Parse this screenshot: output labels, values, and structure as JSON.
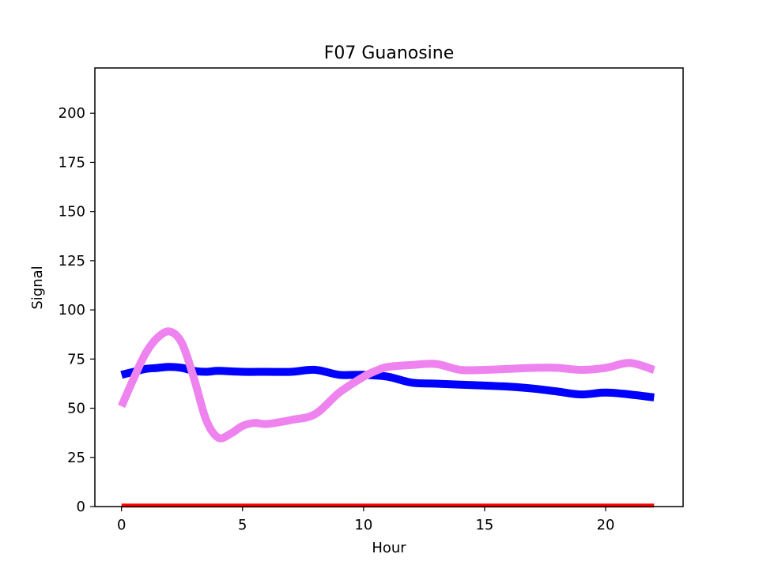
{
  "chart_data": {
    "type": "line",
    "title": "F07 Guanosine",
    "xlabel": "Hour",
    "ylabel": "Signal",
    "xlim": [
      -1.1,
      23.2
    ],
    "ylim": [
      0,
      223
    ],
    "xticks": [
      0,
      5,
      10,
      15,
      20
    ],
    "yticks": [
      0,
      25,
      50,
      75,
      100,
      125,
      150,
      175,
      200
    ],
    "grid": false,
    "legend": "none",
    "series": [
      {
        "color": "#0000ff",
        "points": [
          [
            0,
            67
          ],
          [
            0.5,
            68.5
          ],
          [
            1,
            70
          ],
          [
            1.5,
            70.5
          ],
          [
            2,
            71
          ],
          [
            2.5,
            70.5
          ],
          [
            3,
            69
          ],
          [
            3.5,
            68.5
          ],
          [
            4,
            69
          ],
          [
            5,
            68.5
          ],
          [
            6,
            68.5
          ],
          [
            7,
            68.5
          ],
          [
            8,
            69.5
          ],
          [
            9,
            67
          ],
          [
            10,
            67
          ],
          [
            11,
            66
          ],
          [
            12,
            63
          ],
          [
            13,
            62.5
          ],
          [
            14,
            62
          ],
          [
            15,
            61.5
          ],
          [
            16,
            61
          ],
          [
            17,
            60
          ],
          [
            18,
            58.5
          ],
          [
            19,
            57
          ],
          [
            20,
            58
          ],
          [
            21,
            57
          ],
          [
            22,
            55.5
          ]
        ]
      },
      {
        "color": "#ee82ee",
        "points": [
          [
            0,
            51
          ],
          [
            0.5,
            65
          ],
          [
            1,
            78
          ],
          [
            1.5,
            86
          ],
          [
            2,
            89
          ],
          [
            2.5,
            83
          ],
          [
            3,
            65
          ],
          [
            3.5,
            44
          ],
          [
            4,
            35
          ],
          [
            4.5,
            37
          ],
          [
            5,
            41
          ],
          [
            5.5,
            42.5
          ],
          [
            6,
            42
          ],
          [
            7,
            44
          ],
          [
            8,
            47
          ],
          [
            9,
            58
          ],
          [
            10,
            66
          ],
          [
            10.5,
            69
          ],
          [
            11,
            71
          ],
          [
            12,
            72
          ],
          [
            13,
            72.5
          ],
          [
            14,
            69.5
          ],
          [
            15,
            69.5
          ],
          [
            16,
            70
          ],
          [
            17,
            70.5
          ],
          [
            18,
            70.5
          ],
          [
            19,
            69.5
          ],
          [
            20,
            70.5
          ],
          [
            21,
            73
          ],
          [
            22,
            69.5
          ]
        ]
      },
      {
        "color": "#ff0000",
        "points": [
          [
            0,
            0.5
          ],
          [
            22,
            0.5
          ]
        ]
      }
    ]
  }
}
